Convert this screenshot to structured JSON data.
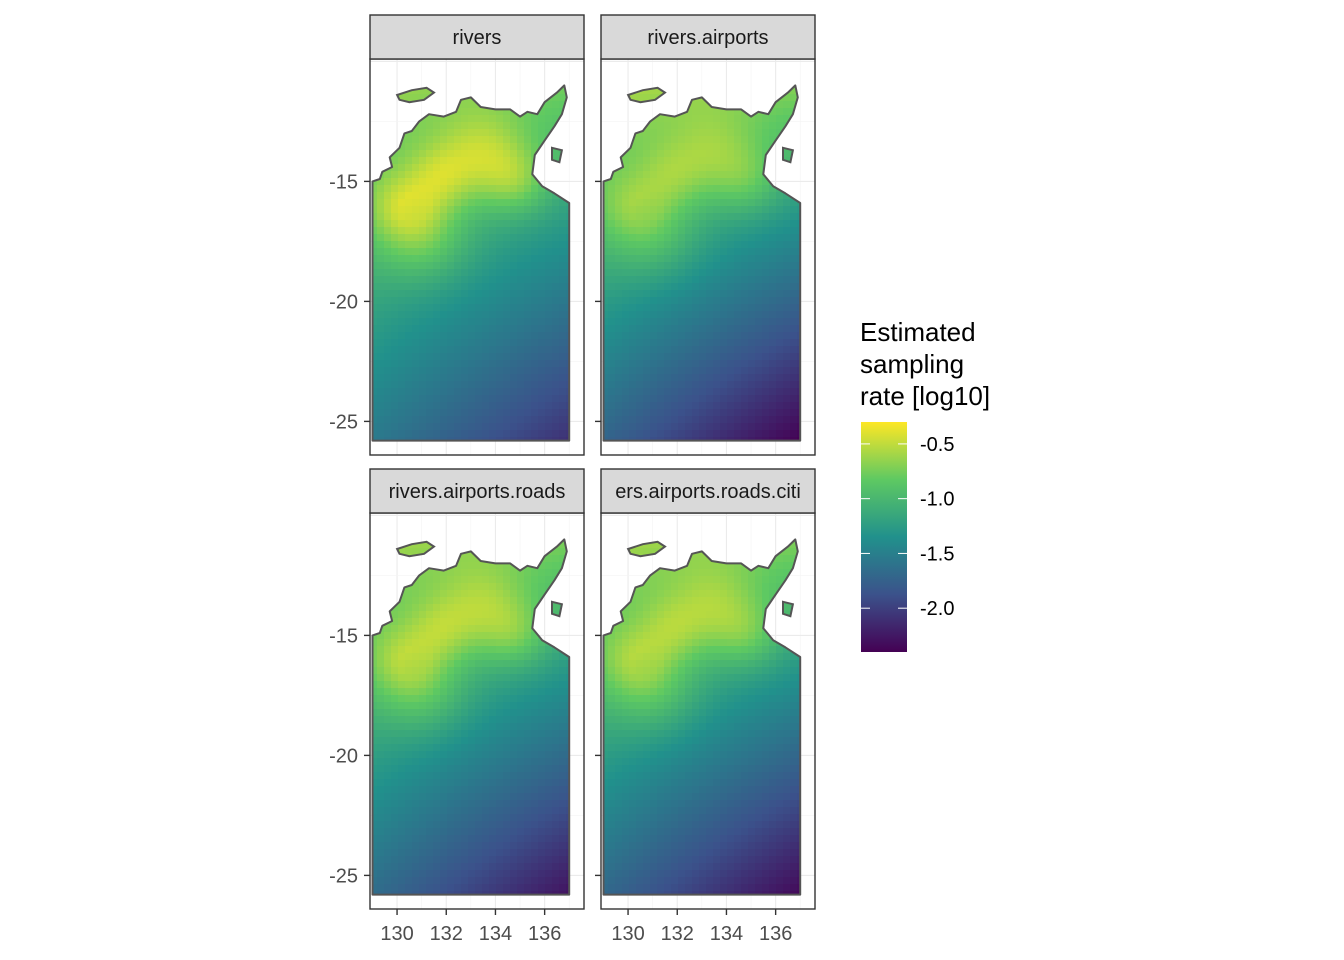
{
  "chart_data": {
    "type": "heatmap",
    "subtype": "faceted raster map",
    "facets": [
      {
        "label": "rivers",
        "hotspot_strength": 1.0,
        "south_gradient": 1.0
      },
      {
        "label": "rivers.airports",
        "hotspot_strength": 0.7,
        "south_gradient": 1.25
      },
      {
        "label": "rivers.airports.roads",
        "hotspot_strength": 0.85,
        "south_gradient": 1.15
      },
      {
        "label": "ers.airports.roads.citi",
        "hotspot_strength": 0.8,
        "south_gradient": 1.2
      }
    ],
    "x_ticks": [
      130,
      132,
      134,
      136
    ],
    "y_ticks": [
      -15,
      -20,
      -25
    ],
    "xlim": [
      128.9,
      137.6
    ],
    "ylim": [
      -26.4,
      -9.9
    ],
    "legend": {
      "title": [
        "Estimated",
        "sampling",
        "rate [log10]"
      ],
      "ticks": [
        -0.5,
        -1.0,
        -1.5,
        -2.0
      ],
      "tick_labels": [
        "-0.5",
        "-1.0",
        "-1.5",
        "-2.0"
      ],
      "range": [
        -2.4,
        -0.3
      ],
      "colors": [
        "#440154",
        "#3b528b",
        "#21918c",
        "#5ec962",
        "#fde725"
      ],
      "position": "right"
    },
    "grid": true,
    "outline_color": "#555555"
  }
}
